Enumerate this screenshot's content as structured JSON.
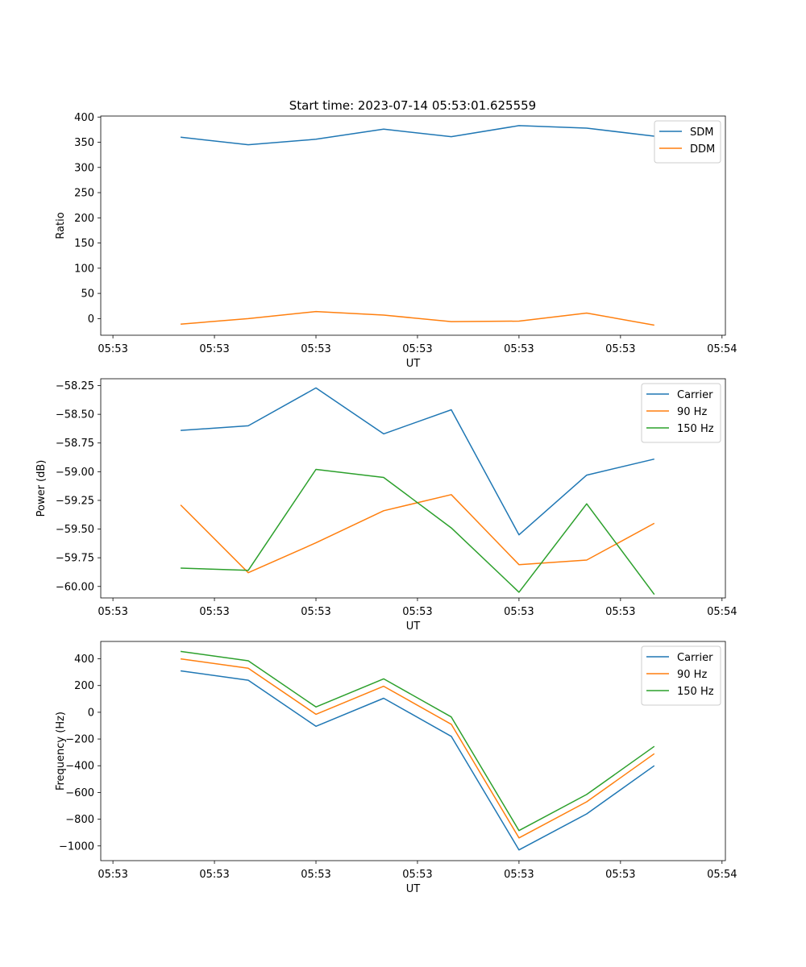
{
  "figure_title": "Start time: 2023-07-14 05:53:01.625559",
  "colors": {
    "blue": "#1f77b4",
    "orange": "#ff7f0e",
    "green": "#2ca02c",
    "axis": "#000000"
  },
  "chart_data": [
    {
      "type": "line",
      "title": "Start time: 2023-07-14 05:53:01.625559",
      "xlabel": "UT",
      "ylabel": "Ratio",
      "x": [
        1,
        2,
        3,
        4,
        5,
        6,
        7,
        8
      ],
      "xlim": [
        -0.18,
        9.05
      ],
      "xticks": [
        0,
        1.5,
        3,
        4.5,
        6,
        7.5,
        9
      ],
      "xtick_labels": [
        "05:53",
        "05:53",
        "05:53",
        "05:53",
        "05:53",
        "05:53",
        "05:54"
      ],
      "ylim": [
        -33,
        402
      ],
      "yticks": [
        0,
        50,
        100,
        150,
        200,
        250,
        300,
        350,
        400
      ],
      "ytick_labels": [
        "0",
        "50",
        "100",
        "150",
        "200",
        "250",
        "300",
        "350",
        "400"
      ],
      "legend_position": "top-right",
      "series": [
        {
          "name": "SDM",
          "color": "#1f77b4",
          "values": [
            360,
            345,
            356,
            376,
            361,
            383,
            378,
            362
          ]
        },
        {
          "name": "DDM",
          "color": "#ff7f0e",
          "values": [
            -11,
            0,
            14,
            7,
            -6,
            -5,
            11,
            -13
          ]
        }
      ]
    },
    {
      "type": "line",
      "title": "",
      "xlabel": "UT",
      "ylabel": "Power (dB)",
      "x": [
        1,
        2,
        3,
        4,
        5,
        6,
        7,
        8
      ],
      "xlim": [
        -0.18,
        9.05
      ],
      "xticks": [
        0,
        1.5,
        3,
        4.5,
        6,
        7.5,
        9
      ],
      "xtick_labels": [
        "05:53",
        "05:53",
        "05:53",
        "05:53",
        "05:53",
        "05:53",
        "05:54"
      ],
      "ylim": [
        -60.1,
        -58.19
      ],
      "yticks": [
        -60.0,
        -59.75,
        -59.5,
        -59.25,
        -59.0,
        -58.75,
        -58.5,
        -58.25
      ],
      "ytick_labels": [
        "−60.00",
        "−59.75",
        "−59.50",
        "−59.25",
        "−59.00",
        "−58.75",
        "−58.50",
        "−58.25"
      ],
      "legend_position": "top-right",
      "series": [
        {
          "name": "Carrier",
          "color": "#1f77b4",
          "values": [
            -58.64,
            -58.6,
            -58.27,
            -58.67,
            -58.46,
            -59.55,
            -59.03,
            -58.89
          ]
        },
        {
          "name": "90 Hz",
          "color": "#ff7f0e",
          "values": [
            -59.29,
            -59.88,
            -59.62,
            -59.34,
            -59.2,
            -59.81,
            -59.77,
            -59.45
          ]
        },
        {
          "name": "150 Hz",
          "color": "#2ca02c",
          "values": [
            -59.84,
            -59.86,
            -58.98,
            -59.05,
            -59.49,
            -60.05,
            -59.28,
            -60.07
          ]
        }
      ]
    },
    {
      "type": "line",
      "title": "",
      "xlabel": "UT",
      "ylabel": "Frequency (Hz)",
      "x": [
        1,
        2,
        3,
        4,
        5,
        6,
        7,
        8
      ],
      "xlim": [
        -0.18,
        9.05
      ],
      "xticks": [
        0,
        1.5,
        3,
        4.5,
        6,
        7.5,
        9
      ],
      "xtick_labels": [
        "05:53",
        "05:53",
        "05:53",
        "05:53",
        "05:53",
        "05:53",
        "05:54"
      ],
      "ylim": [
        -1110,
        530
      ],
      "yticks": [
        -1000,
        -800,
        -600,
        -400,
        -200,
        0,
        200,
        400
      ],
      "ytick_labels": [
        "−1000",
        "−800",
        "−600",
        "−400",
        "−200",
        "0",
        "200",
        "400"
      ],
      "legend_position": "top-right",
      "series": [
        {
          "name": "Carrier",
          "color": "#1f77b4",
          "values": [
            310,
            240,
            -105,
            105,
            -180,
            -1030,
            -760,
            -400
          ]
        },
        {
          "name": "90 Hz",
          "color": "#ff7f0e",
          "values": [
            400,
            330,
            -15,
            195,
            -90,
            -940,
            -670,
            -310
          ]
        },
        {
          "name": "150 Hz",
          "color": "#2ca02c",
          "values": [
            455,
            385,
            40,
            250,
            -35,
            -885,
            -615,
            -255
          ]
        }
      ]
    }
  ]
}
